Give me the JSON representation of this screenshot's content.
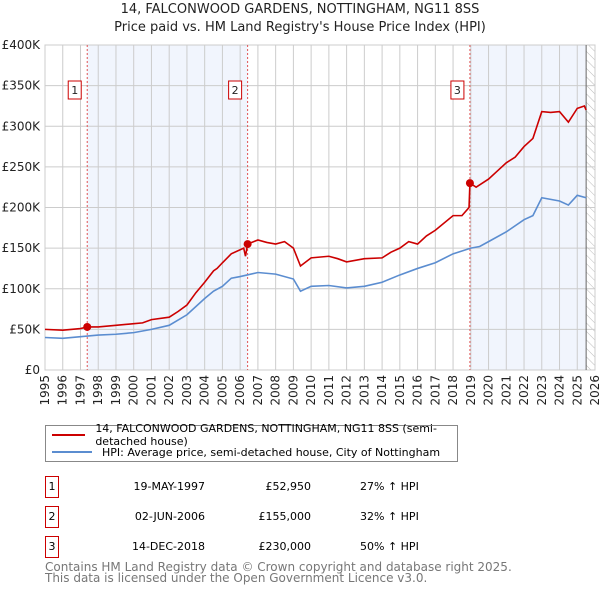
{
  "chart_data": {
    "type": "line",
    "title": "14, FALCONWOOD GARDENS, NOTTINGHAM, NG11 8SS",
    "subtitle": "Price paid vs. HM Land Registry's House Price Index (HPI)",
    "xlim": [
      1995,
      2026
    ],
    "ylim": [
      0,
      400000
    ],
    "x_ticks": [
      "1995",
      "1996",
      "1997",
      "1998",
      "1999",
      "2000",
      "2001",
      "2002",
      "2003",
      "2004",
      "2005",
      "2006",
      "2007",
      "2008",
      "2009",
      "2010",
      "2011",
      "2012",
      "2013",
      "2014",
      "2015",
      "2016",
      "2017",
      "2018",
      "2019",
      "2020",
      "2021",
      "2022",
      "2023",
      "2024",
      "2025",
      "2026"
    ],
    "y_ticks": [
      {
        "v": 0,
        "label": "£0"
      },
      {
        "v": 50000,
        "label": "£50K"
      },
      {
        "v": 100000,
        "label": "£100K"
      },
      {
        "v": 150000,
        "label": "£150K"
      },
      {
        "v": 200000,
        "label": "£200K"
      },
      {
        "v": 250000,
        "label": "£250K"
      },
      {
        "v": 300000,
        "label": "£300K"
      },
      {
        "v": 350000,
        "label": "£350K"
      },
      {
        "v": 400000,
        "label": "£400K"
      }
    ],
    "grid": true,
    "series": [
      {
        "name": "14, FALCONWOOD GARDENS, NOTTINGHAM, NG11 8SS (semi-detached house)",
        "color": "#cc0000",
        "x": [
          1995,
          1996,
          1997,
          1997.38,
          1998,
          1999,
          2000,
          2000.5,
          2001,
          2002,
          2002.5,
          2003,
          2003.5,
          2004,
          2004.5,
          2004.7,
          2005,
          2005.5,
          2006.2,
          2006.3,
          2006.42,
          2007,
          2007.5,
          2008,
          2008.5,
          2009,
          2009.4,
          2010,
          2011,
          2011.5,
          2012,
          2013,
          2014,
          2014.5,
          2015,
          2015.5,
          2016,
          2016.5,
          2017,
          2018,
          2018.5,
          2018.9,
          2018.95,
          2019.3,
          2020,
          2020.5,
          2021,
          2021.5,
          2022,
          2022.5,
          2023,
          2023.5,
          2024,
          2024.5,
          2025,
          2025.4,
          2025.5
        ],
        "y": [
          50000,
          49000,
          51000,
          52950,
          53000,
          55000,
          57000,
          58000,
          62000,
          65000,
          72000,
          80000,
          95000,
          108000,
          122000,
          125000,
          132000,
          143000,
          150000,
          140000,
          155000,
          160000,
          157000,
          155000,
          158000,
          150000,
          128000,
          138000,
          140000,
          137000,
          133000,
          137000,
          138000,
          145000,
          150000,
          158000,
          155000,
          165000,
          172000,
          190000,
          190000,
          200000,
          230000,
          225000,
          235000,
          245000,
          255000,
          262000,
          275000,
          285000,
          318000,
          317000,
          318000,
          305000,
          322000,
          325000,
          320000
        ]
      },
      {
        "name": "HPI: Average price, semi-detached house, City of Nottingham",
        "color": "#5b8dd0",
        "x": [
          1995,
          1996,
          1997,
          1998,
          1999,
          2000,
          2001,
          2002,
          2003,
          2004,
          2004.5,
          2005,
          2005.5,
          2006,
          2006.4,
          2007,
          2008,
          2009,
          2009.4,
          2010,
          2011,
          2012,
          2013,
          2014,
          2015,
          2016,
          2017,
          2018,
          2019,
          2019.5,
          2020,
          2021,
          2022,
          2022.5,
          2023,
          2024,
          2024.5,
          2025,
          2025.5
        ],
        "y": [
          40000,
          39000,
          41000,
          43000,
          44000,
          46000,
          50000,
          55000,
          68000,
          88000,
          97000,
          103000,
          113000,
          115000,
          117000,
          120000,
          118000,
          112000,
          97000,
          103000,
          104000,
          101000,
          103000,
          108000,
          117000,
          125000,
          132000,
          143000,
          150000,
          152000,
          158000,
          170000,
          185000,
          190000,
          212000,
          208000,
          203000,
          215000,
          212000
        ]
      }
    ],
    "sales": [
      {
        "num": "1",
        "x": 1997.38,
        "y": 52950,
        "date": "19-MAY-1997",
        "price": "£52,950",
        "pct": "27% ↑ HPI"
      },
      {
        "num": "2",
        "x": 2006.42,
        "y": 155000,
        "date": "02-JUN-2006",
        "price": "£155,000",
        "pct": "32% ↑ HPI"
      },
      {
        "num": "3",
        "x": 2018.95,
        "y": 230000,
        "date": "14-DEC-2018",
        "price": "£230,000",
        "pct": "50% ↑ HPI"
      }
    ],
    "data_end": 2025.5,
    "legend": "below"
  },
  "footer": [
    "Contains HM Land Registry data © Crown copyright and database right 2025.",
    "This data is licensed under the Open Government Licence v3.0."
  ]
}
